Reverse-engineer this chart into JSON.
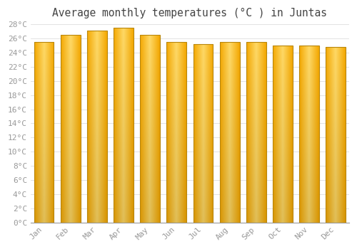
{
  "title": "Average monthly temperatures (°C ) in Juntas",
  "months": [
    "Jan",
    "Feb",
    "Mar",
    "Apr",
    "May",
    "Jun",
    "Jul",
    "Aug",
    "Sep",
    "Oct",
    "Nov",
    "Dec"
  ],
  "values": [
    25.5,
    26.5,
    27.1,
    27.5,
    26.5,
    25.5,
    25.2,
    25.5,
    25.5,
    25.0,
    25.0,
    24.8
  ],
  "bar_color_center": "#FFD966",
  "bar_color_edge": "#F5A800",
  "bar_border_color": "#B8860B",
  "background_color": "#FFFFFF",
  "plot_bg_color": "#FFFFFF",
  "grid_color": "#DDDDDD",
  "tick_label_color": "#999999",
  "title_color": "#444444",
  "ylim": [
    0,
    28
  ],
  "ytick_step": 2,
  "title_fontsize": 10.5,
  "tick_fontsize": 8
}
